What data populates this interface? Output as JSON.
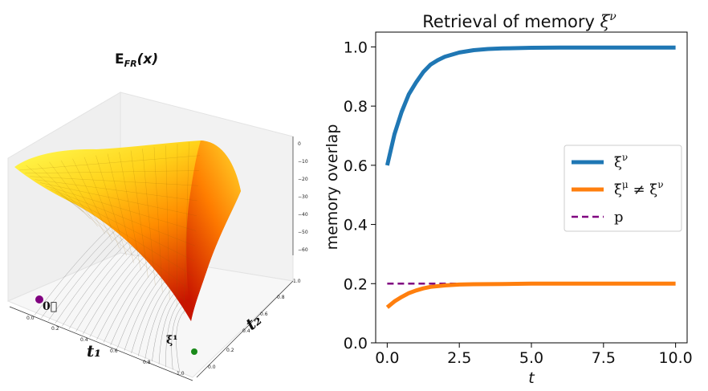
{
  "left_panel": {
    "title": "E_FR(x)",
    "title_main": "E",
    "title_sub": "FR",
    "title_arg": "(x)",
    "x_axis_label": "t₁",
    "y_axis_label": "t₂",
    "x_ticks": [
      "0.0",
      "0.2",
      "0.4",
      "0.6",
      "0.8",
      "1.0"
    ],
    "y_ticks": [
      "0.0",
      "0.2",
      "0.4",
      "0.6",
      "0.8",
      "1.0"
    ],
    "z_ticks": [
      "0",
      "−10",
      "−20",
      "−30",
      "−40",
      "−50",
      "−60"
    ],
    "origin_label": "0⃗",
    "memory_label": "ξ̄¹",
    "origin_color": "#800080",
    "memory_color": "#1a8a1a",
    "surface_colors": [
      "#ffff33",
      "#ff9900",
      "#cc1100"
    ]
  },
  "chart_data": {
    "type": "line",
    "title": "Retrieval of memory ξ^ν",
    "title_text": "Retrieval of memory ",
    "title_symbol": "ξ",
    "title_sup": "ν",
    "xlabel": "t",
    "ylabel": "memory overlap",
    "xlim": [
      -0.4,
      10.4
    ],
    "ylim": [
      0.0,
      1.05
    ],
    "xticks": [
      0.0,
      2.5,
      5.0,
      7.5,
      10.0
    ],
    "xtick_labels": [
      "0.0",
      "2.5",
      "5.0",
      "7.5",
      "10.0"
    ],
    "yticks": [
      0.0,
      0.2,
      0.4,
      0.6,
      0.8,
      1.0
    ],
    "ytick_labels": [
      "0.0",
      "0.2",
      "0.4",
      "0.6",
      "0.8",
      "1.0"
    ],
    "grid": false,
    "legend_position": "center-right",
    "series": [
      {
        "name": "ξ̄^ν",
        "legend_label": "ξ̄ν",
        "color": "#1f77b4",
        "style": "solid",
        "x": [
          0,
          0.25,
          0.5,
          0.75,
          1.0,
          1.25,
          1.5,
          1.75,
          2.0,
          2.5,
          3.0,
          3.5,
          4.0,
          5.0,
          6.0,
          7.0,
          8.0,
          9.0,
          10.0
        ],
        "values": [
          0.6,
          0.705,
          0.78,
          0.84,
          0.88,
          0.915,
          0.94,
          0.955,
          0.967,
          0.981,
          0.989,
          0.993,
          0.995,
          0.997,
          0.998,
          0.998,
          0.998,
          0.998,
          0.998
        ]
      },
      {
        "name": "ξ̄^μ ≠ ξ̄^ν",
        "legend_label": "ξ̄μ ≠ ξ̄ν",
        "color": "#ff7f0e",
        "style": "solid",
        "x": [
          0,
          0.25,
          0.5,
          0.75,
          1.0,
          1.25,
          1.5,
          2.0,
          2.5,
          3.0,
          4.0,
          5.0,
          6.0,
          7.0,
          8.0,
          9.0,
          10.0
        ],
        "values": [
          0.12,
          0.14,
          0.155,
          0.168,
          0.177,
          0.184,
          0.189,
          0.194,
          0.197,
          0.198,
          0.199,
          0.2,
          0.2,
          0.2,
          0.2,
          0.2,
          0.2
        ]
      },
      {
        "name": "p",
        "legend_label": "p",
        "color": "#800080",
        "style": "dashed",
        "x": [
          0,
          10.0
        ],
        "values": [
          0.2,
          0.2
        ]
      }
    ]
  }
}
